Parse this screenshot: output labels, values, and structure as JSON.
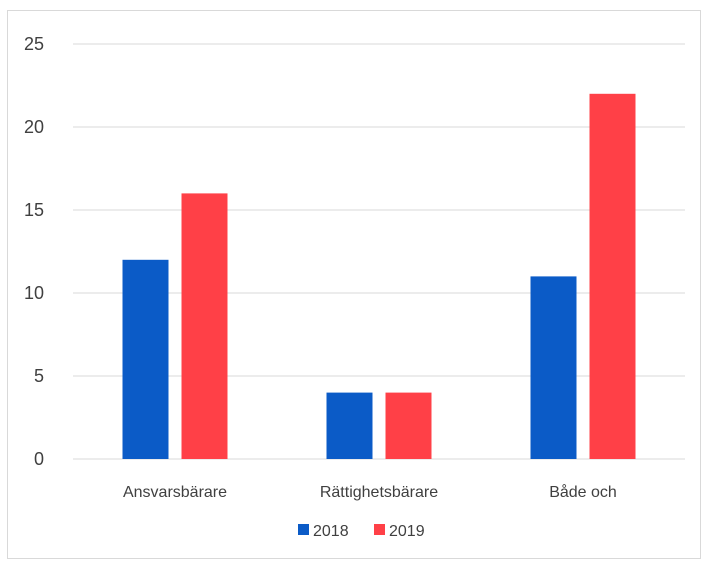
{
  "chart_data": {
    "type": "bar",
    "categories": [
      "Ansvarsbärare",
      "Rättighetsbärare",
      "Både och"
    ],
    "series": [
      {
        "name": "2018",
        "values": [
          12,
          4,
          11
        ],
        "color": "#0b5bc7"
      },
      {
        "name": "2019",
        "values": [
          16,
          4,
          22
        ],
        "color": "#ff4047"
      }
    ],
    "yticks": [
      "0",
      "5",
      "10",
      "15",
      "20",
      "25"
    ],
    "ylim": [
      0,
      25
    ],
    "grid": true,
    "legend_position": "bottom"
  }
}
